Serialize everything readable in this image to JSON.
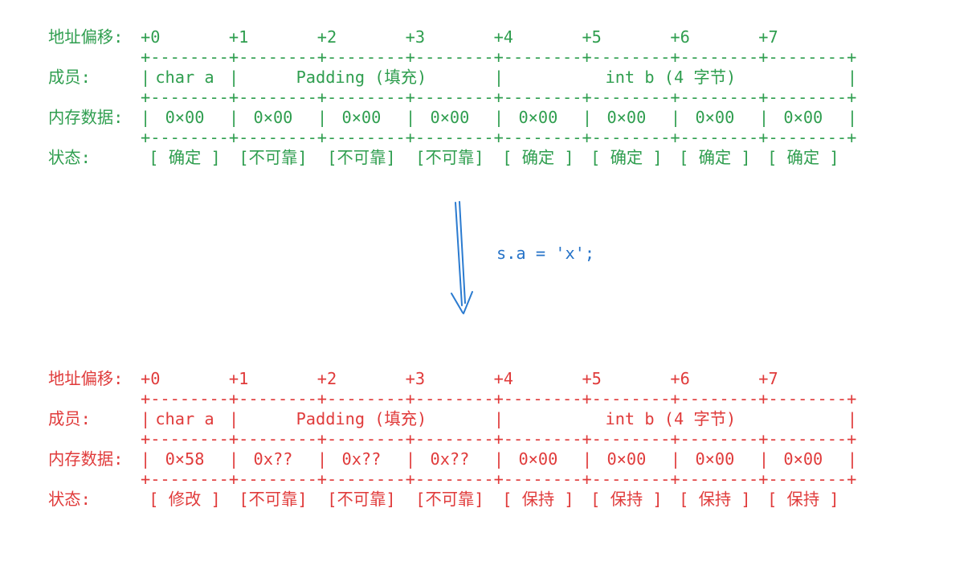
{
  "code": {
    "text": "s.a = 'x';",
    "color": "#2673c8"
  },
  "arrow": {
    "direction": "down",
    "color": "#2b7bd0"
  },
  "grid": {
    "cell_count": 8,
    "dashes_per_cell": 8,
    "border_plus": "+",
    "border_dash": "-",
    "divider": "|"
  },
  "tables": [
    {
      "name": "before",
      "color": "#2f9e4f",
      "labels": {
        "offset": "地址偏移:",
        "member": "成员:",
        "memory": "内存数据:",
        "status": "状态:"
      },
      "offsets": [
        "+0",
        "+1",
        "+2",
        "+3",
        "+4",
        "+5",
        "+6",
        "+7"
      ],
      "members": [
        {
          "label": "char a",
          "start": 0,
          "span": 1
        },
        {
          "label": "Padding (填充)",
          "start": 1,
          "span": 3
        },
        {
          "label": "int b (4 字节)",
          "start": 4,
          "span": 4
        }
      ],
      "memory": [
        "0×00",
        "0×00",
        "0×00",
        "0×00",
        "0×00",
        "0×00",
        "0×00",
        "0×00"
      ],
      "status": [
        "[ 确定 ]",
        "[不可靠]",
        "[不可靠]",
        "[不可靠]",
        "[ 确定 ]",
        "[ 确定 ]",
        "[ 确定 ]",
        "[ 确定 ]"
      ]
    },
    {
      "name": "after",
      "color": "#e03b3b",
      "labels": {
        "offset": "地址偏移:",
        "member": "成员:",
        "memory": "内存数据:",
        "status": "状态:"
      },
      "offsets": [
        "+0",
        "+1",
        "+2",
        "+3",
        "+4",
        "+5",
        "+6",
        "+7"
      ],
      "members": [
        {
          "label": "char a",
          "start": 0,
          "span": 1
        },
        {
          "label": "Padding (填充)",
          "start": 1,
          "span": 3
        },
        {
          "label": "int b (4 字节)",
          "start": 4,
          "span": 4
        }
      ],
      "memory": [
        "0×58",
        "0x??",
        "0x??",
        "0x??",
        "0×00",
        "0×00",
        "0×00",
        "0×00"
      ],
      "status": [
        "[ 修改 ]",
        "[不可靠]",
        "[不可靠]",
        "[不可靠]",
        "[ 保持 ]",
        "[ 保持 ]",
        "[ 保持 ]",
        "[ 保持 ]"
      ]
    }
  ]
}
